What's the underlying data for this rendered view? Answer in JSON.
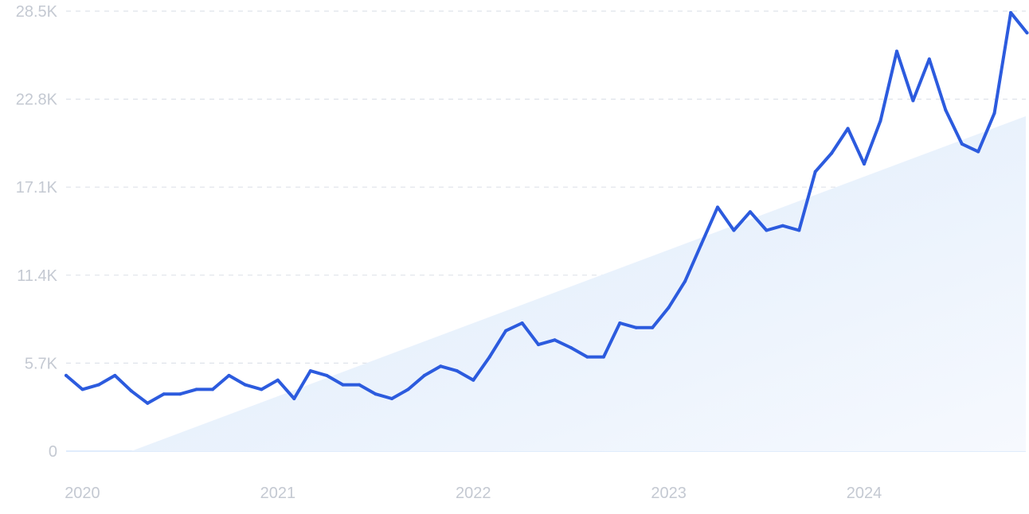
{
  "chart_data": {
    "type": "line",
    "xlabel": "",
    "ylabel": "",
    "x_tick_labels": [
      "2020",
      "2021",
      "2022",
      "2023",
      "2024"
    ],
    "y_tick_labels": [
      "0",
      "5.7K",
      "11.4K",
      "17.1K",
      "22.8K",
      "28.5K"
    ],
    "ylim": [
      0,
      28500
    ],
    "grid": "horizontal dashed",
    "colors": {
      "line": "#2c5bde",
      "trend_fill": "#e6f0fc",
      "tick_text": "#c4c9d2",
      "grid": "#dfe3ea"
    },
    "trend": {
      "start": [
        "2020-04",
        0
      ],
      "end": [
        "2024-11",
        21700
      ]
    },
    "series": [
      {
        "x": [
          "2019-12",
          "2020-01",
          "2020-02",
          "2020-03",
          "2020-04",
          "2020-05",
          "2020-06",
          "2020-07",
          "2020-08",
          "2020-09",
          "2020-10",
          "2020-11",
          "2020-12",
          "2021-01",
          "2021-02",
          "2021-03",
          "2021-04",
          "2021-05",
          "2021-06",
          "2021-07",
          "2021-08",
          "2021-09",
          "2021-10",
          "2021-11",
          "2021-12",
          "2022-01",
          "2022-02",
          "2022-03",
          "2022-04",
          "2022-05",
          "2022-06",
          "2022-07",
          "2022-08",
          "2022-09",
          "2022-10",
          "2022-11",
          "2022-12",
          "2023-01",
          "2023-02",
          "2023-03",
          "2023-04",
          "2023-05",
          "2023-06",
          "2023-07",
          "2023-08",
          "2023-09",
          "2023-10",
          "2023-11",
          "2023-12",
          "2024-01",
          "2024-02",
          "2024-03",
          "2024-04",
          "2024-05",
          "2024-06",
          "2024-07",
          "2024-08",
          "2024-09",
          "2024-10",
          "2024-11"
        ],
        "values": [
          4900,
          4000,
          4300,
          4900,
          3900,
          3100,
          3700,
          3700,
          4000,
          4000,
          4900,
          4300,
          4000,
          4600,
          3400,
          5200,
          4900,
          4300,
          4300,
          3700,
          3400,
          4000,
          4900,
          5500,
          5200,
          4600,
          6100,
          7800,
          8300,
          6900,
          7200,
          6700,
          6100,
          6100,
          8300,
          8000,
          8000,
          9300,
          11000,
          13400,
          15800,
          14300,
          15500,
          14300,
          14600,
          14300,
          18100,
          19300,
          20900,
          18600,
          21400,
          25900,
          22700,
          25400,
          22100,
          19900,
          19400,
          21900,
          28400,
          27100
        ]
      }
    ]
  }
}
